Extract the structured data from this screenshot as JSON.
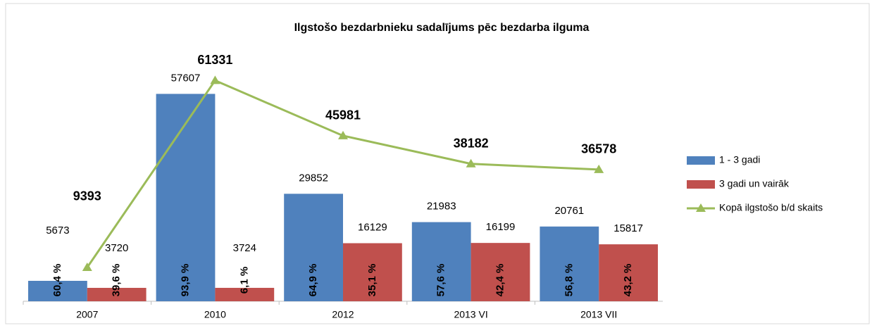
{
  "chart_data": {
    "type": "bar_line",
    "title": "Ilgstošo bezdarbnieku sadalījums  pēc bezdarba ilguma",
    "categories": [
      "2007",
      "2010",
      "2012",
      "2013 VI",
      "2013 VII"
    ],
    "ylim": [
      0,
      70000
    ],
    "series": [
      {
        "name": "1 - 3 gadi",
        "type": "bar",
        "color": "#4f81bd",
        "values": [
          5673,
          57607,
          29852,
          21983,
          20761
        ],
        "share_labels": [
          "60,4 %",
          "93,9 %",
          "64,9 %",
          "57,6 %",
          "56,8 %"
        ]
      },
      {
        "name": "3 gadi un vairāk",
        "type": "bar",
        "color": "#c0504d",
        "values": [
          3720,
          3724,
          16129,
          16199,
          15817
        ],
        "share_labels": [
          "39,6 %",
          "6,1 %",
          "35,1 %",
          "42,4 %",
          "43,2 %"
        ]
      },
      {
        "name": "Kopā ilgstošo b/d skaits",
        "type": "line",
        "color": "#9bbb59",
        "values": [
          9393,
          61331,
          45981,
          38182,
          36578
        ]
      }
    ],
    "legend": "right"
  }
}
